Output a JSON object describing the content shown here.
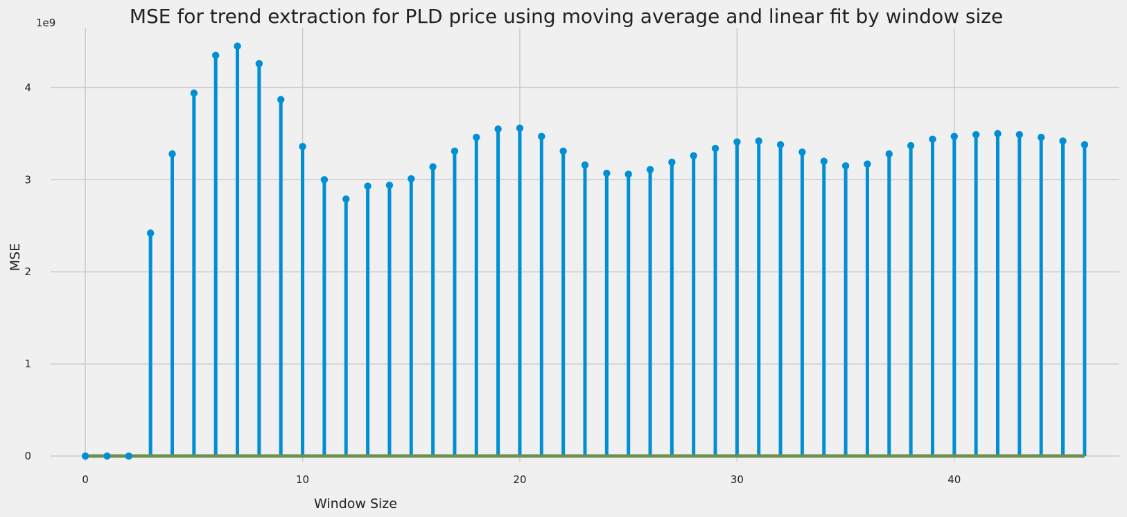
{
  "chart_data": {
    "type": "stem",
    "title": "MSE for trend extraction for PLD price using moving average and linear fit by window size",
    "xlabel": "Window Size",
    "ylabel": "MSE",
    "y_multiplier_label": "1e9",
    "xlim": [
      -1.6,
      47.6
    ],
    "ylim": [
      -0.06,
      4.65
    ],
    "x_ticks": [
      0,
      10,
      20,
      30,
      40
    ],
    "y_ticks": [
      0,
      1,
      2,
      3,
      4
    ],
    "y_unit_scale": 1000000000,
    "grid": true,
    "series": [
      {
        "marker_color": "#008fd5",
        "stem_color": "#008fd5",
        "baseline_color": "#6d904f",
        "x": [
          0,
          1,
          2,
          3,
          4,
          5,
          6,
          7,
          8,
          9,
          10,
          11,
          12,
          13,
          14,
          15,
          16,
          17,
          18,
          19,
          20,
          21,
          22,
          23,
          24,
          25,
          26,
          27,
          28,
          29,
          30,
          31,
          32,
          33,
          34,
          35,
          36,
          37,
          38,
          39,
          40,
          41,
          42,
          43,
          44,
          45,
          46
        ],
        "values": [
          0.0,
          0.0,
          0.0,
          2.42,
          3.28,
          3.94,
          4.35,
          4.45,
          4.26,
          3.87,
          3.36,
          3.0,
          2.79,
          2.93,
          2.94,
          3.01,
          3.14,
          3.31,
          3.46,
          3.55,
          3.56,
          3.47,
          3.31,
          3.16,
          3.07,
          3.06,
          3.11,
          3.19,
          3.26,
          3.34,
          3.41,
          3.42,
          3.38,
          3.3,
          3.2,
          3.15,
          3.17,
          3.28,
          3.37,
          3.44,
          3.47,
          3.49,
          3.5,
          3.49,
          3.46,
          3.42,
          3.38
        ]
      }
    ]
  }
}
